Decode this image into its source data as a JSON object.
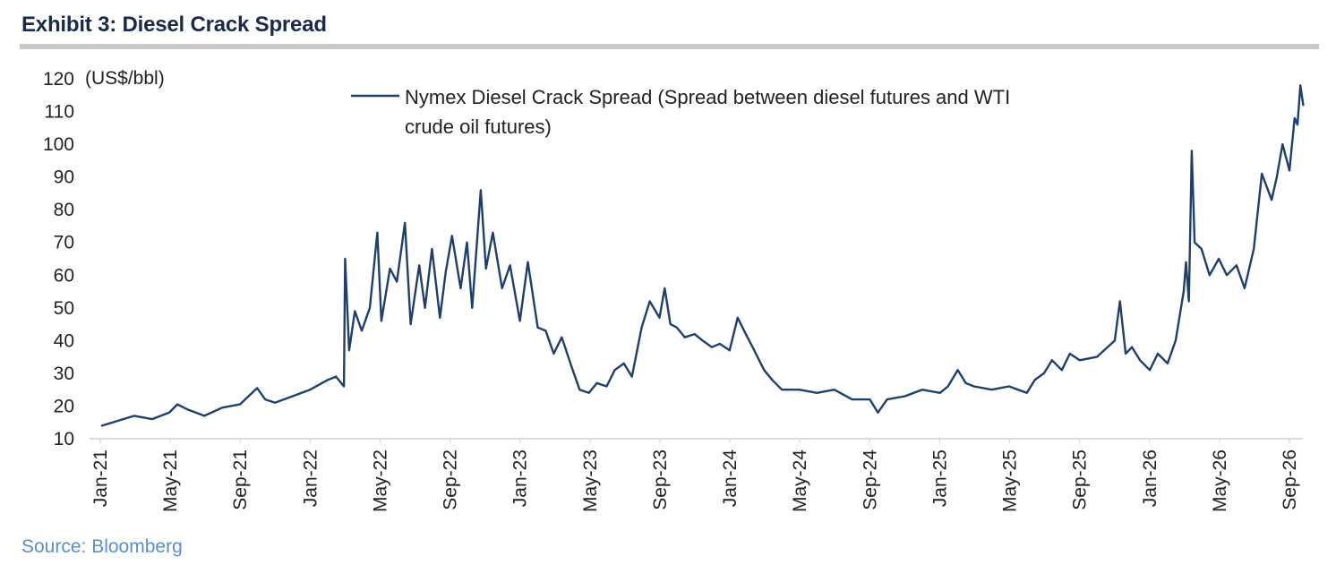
{
  "header": {
    "title": "Exhibit 3: Diesel Crack Spread"
  },
  "footer": {
    "source": "Source: Bloomberg"
  },
  "colors": {
    "series": "#1f3f6e",
    "title": "#1b2a4a",
    "source": "#5b8fc9",
    "rule": "#c8c8c8"
  },
  "chart_data": {
    "type": "line",
    "title": "Exhibit 3: Diesel Crack Spread",
    "ylabel": "(US$/bbl)",
    "xlabel": "",
    "ylim": [
      10,
      120
    ],
    "y_ticks": [
      10,
      20,
      30,
      40,
      50,
      60,
      70,
      80,
      90,
      100,
      110,
      120
    ],
    "x_tick_labels": [
      "Jan-21",
      "May-21",
      "Sep-21",
      "Jan-22",
      "May-22",
      "Sep-22",
      "Jan-23",
      "May-23",
      "Sep-23",
      "Jan-24",
      "May-24",
      "Sep-24",
      "Jan-25",
      "May-25",
      "Sep-25",
      "Jan-26",
      "May-26",
      "Sep-26"
    ],
    "grid": false,
    "legend_position": "top-center",
    "series": [
      {
        "name": "Nymex Diesel Crack Spread (Spread between diesel futures and WTI crude oil futures)",
        "legend_lines": [
          "Nymex Diesel Crack Spread (Spread between diesel futures and WTI",
          "crude oil futures)"
        ],
        "x": [
          "2021-01-04",
          "2021-02-01",
          "2021-03-01",
          "2021-04-01",
          "2021-05-01",
          "2021-05-15",
          "2021-06-01",
          "2021-07-01",
          "2021-08-01",
          "2021-09-01",
          "2021-10-01",
          "2021-10-15",
          "2021-11-01",
          "2022-01-01",
          "2022-02-01",
          "2022-02-15",
          "2022-03-01",
          "2022-03-03",
          "2022-03-10",
          "2022-03-20",
          "2022-04-01",
          "2022-04-15",
          "2022-04-28",
          "2022-05-05",
          "2022-05-20",
          "2022-06-01",
          "2022-06-15",
          "2022-06-25",
          "2022-07-10",
          "2022-07-20",
          "2022-08-01",
          "2022-08-15",
          "2022-08-25",
          "2022-09-05",
          "2022-09-20",
          "2022-10-01",
          "2022-10-10",
          "2022-10-25",
          "2022-11-03",
          "2022-11-15",
          "2022-12-01",
          "2022-12-15",
          "2023-01-01",
          "2023-01-15",
          "2023-02-01",
          "2023-02-15",
          "2023-03-01",
          "2023-03-15",
          "2023-04-01",
          "2023-04-15",
          "2023-05-01",
          "2023-05-15",
          "2023-06-01",
          "2023-06-15",
          "2023-07-01",
          "2023-07-15",
          "2023-08-01",
          "2023-08-15",
          "2023-09-01",
          "2023-09-10",
          "2023-09-20",
          "2023-10-01",
          "2023-10-15",
          "2023-11-01",
          "2023-11-15",
          "2023-12-01",
          "2023-12-15",
          "2024-01-01",
          "2024-01-15",
          "2024-02-01",
          "2024-02-10",
          "2024-03-01",
          "2024-03-15",
          "2024-04-01",
          "2024-05-01",
          "2024-06-01",
          "2024-07-01",
          "2024-08-01",
          "2024-09-01",
          "2024-09-15",
          "2024-10-01",
          "2024-11-01",
          "2024-12-01",
          "2025-01-01",
          "2025-01-15",
          "2025-02-01",
          "2025-02-15",
          "2025-03-01",
          "2025-04-01",
          "2025-05-01",
          "2025-06-01",
          "2025-06-15",
          "2025-07-01",
          "2025-07-15",
          "2025-08-01",
          "2025-08-15",
          "2025-09-01",
          "2025-10-01",
          "2025-11-01",
          "2025-11-10",
          "2025-11-20",
          "2025-12-01",
          "2025-12-15",
          "2026-01-01",
          "2026-01-15",
          "2026-02-01",
          "2026-02-15",
          "2026-03-01",
          "2026-03-05",
          "2026-03-10",
          "2026-03-15",
          "2026-03-20",
          "2026-04-01",
          "2026-04-15",
          "2026-05-01",
          "2026-05-15",
          "2026-06-01",
          "2026-06-15",
          "2026-07-01",
          "2026-07-15",
          "2026-08-01",
          "2026-08-10",
          "2026-08-20",
          "2026-09-01",
          "2026-09-10",
          "2026-09-15",
          "2026-09-20",
          "2026-09-25"
        ],
        "y": [
          14,
          15.5,
          17,
          16,
          18,
          20.5,
          19,
          17,
          19.5,
          20.5,
          25.5,
          22,
          21,
          25,
          28,
          29,
          26,
          65,
          37,
          49,
          43,
          50,
          73,
          46,
          62,
          58,
          76,
          45,
          63,
          50,
          68,
          47,
          61,
          72,
          56,
          70,
          50,
          86,
          62,
          73,
          56,
          63,
          46,
          64,
          44,
          43,
          36,
          41,
          32,
          25,
          24,
          27,
          26,
          31,
          33,
          29,
          44,
          52,
          47,
          56,
          45,
          44,
          41,
          42,
          40,
          38,
          39,
          37,
          47,
          41,
          38,
          31,
          28,
          25,
          25,
          24,
          25,
          22,
          22,
          18,
          22,
          23,
          25,
          24,
          26,
          31,
          27,
          26,
          25,
          26,
          24,
          28,
          30,
          34,
          31,
          36,
          34,
          35,
          40,
          52,
          36,
          38,
          34,
          31,
          36,
          33,
          40,
          55,
          64,
          52,
          98,
          70,
          68,
          60,
          65,
          60,
          63,
          56,
          68,
          91,
          83,
          90,
          100,
          92,
          108,
          106,
          118,
          112
        ]
      }
    ]
  }
}
